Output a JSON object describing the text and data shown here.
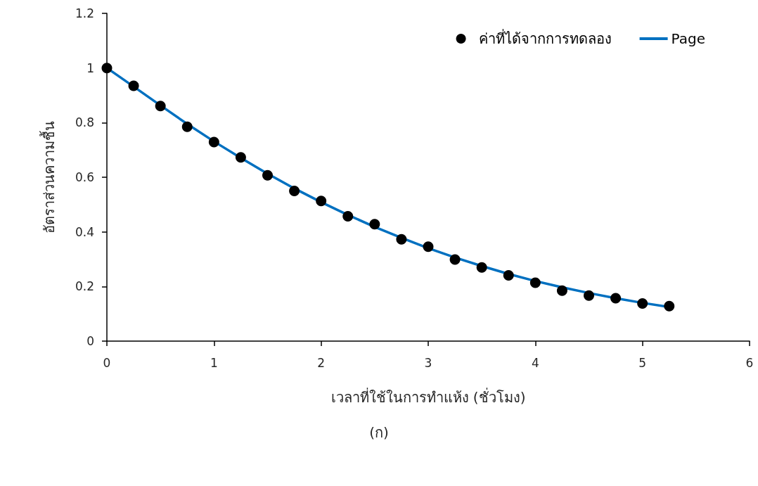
{
  "chart_data": {
    "type": "scatter",
    "xlabel": "เวลาที่ใช้ในการทำแห้ง (ชั่วโมง)",
    "ylabel": "อัตราส่วนความชื้น",
    "annotations": [
      "(ก)"
    ],
    "x": [
      0,
      0.25,
      0.5,
      0.75,
      1,
      1.25,
      1.5,
      1.75,
      2,
      2.25,
      2.5,
      2.75,
      3,
      3.25,
      3.5,
      3.75,
      4,
      4.25,
      4.5,
      4.75,
      5,
      5.25
    ],
    "series": [
      {
        "name": "ค่าที่ได้จากการทดลอง",
        "marker": "circle",
        "color": "#000000",
        "values": [
          1,
          0.935,
          0.861,
          0.785,
          0.729,
          0.673,
          0.607,
          0.55,
          0.513,
          0.457,
          0.428,
          0.373,
          0.346,
          0.299,
          0.27,
          0.241,
          0.214,
          0.185,
          0.167,
          0.157,
          0.138,
          0.128
        ]
      },
      {
        "name": "Page",
        "type": "line",
        "marker": "none",
        "line_style": "solid",
        "color": "#0070c0",
        "values": [
          1,
          0.932,
          0.863,
          0.795,
          0.731,
          0.671,
          0.613,
          0.559,
          0.509,
          0.462,
          0.418,
          0.378,
          0.34,
          0.306,
          0.275,
          0.246,
          0.22,
          0.197,
          0.176,
          0.157,
          0.14,
          0.125
        ]
      }
    ],
    "xlim": [
      0,
      6
    ],
    "xticks": [
      0,
      1,
      2,
      3,
      4,
      5,
      6
    ],
    "ylim": [
      0,
      1.2
    ],
    "yticks": [
      0,
      0.2,
      0.4,
      0.6,
      0.8,
      1,
      1.2
    ],
    "grid": false,
    "legend": "top right"
  }
}
